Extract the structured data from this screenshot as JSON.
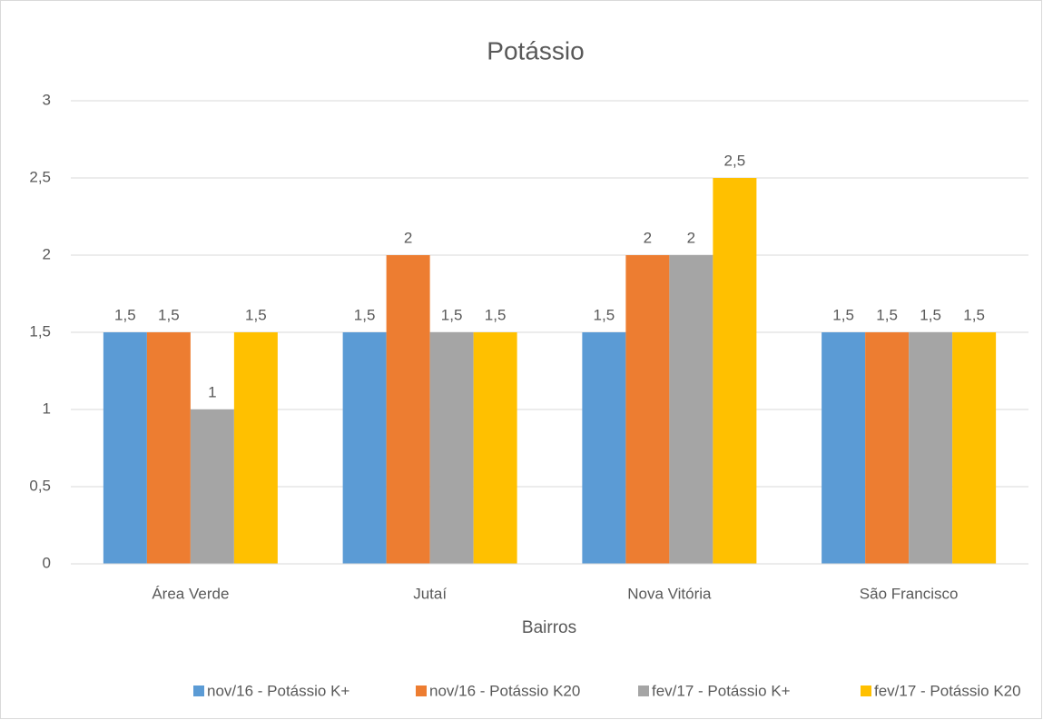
{
  "chart_data": {
    "type": "bar",
    "title": "Potássio",
    "x_label": "Bairros",
    "categories": [
      "Área Verde",
      "Jutaí",
      "Nova Vitória",
      "São Francisco"
    ],
    "series": [
      {
        "name": "nov/16 - Potássio K+",
        "color": "#5b9bd5",
        "values": [
          1.5,
          1.5,
          1.5,
          1.5
        ],
        "value_labels": [
          "1,5",
          "1,5",
          "1,5",
          "1,5"
        ]
      },
      {
        "name": "nov/16 - Potássio K20",
        "color": "#ed7d31",
        "values": [
          1.5,
          2,
          2,
          1.5
        ],
        "value_labels": [
          "1,5",
          "2",
          "2",
          "1,5"
        ]
      },
      {
        "name": "fev/17 - Potássio K+",
        "color": "#a5a5a5",
        "values": [
          1,
          1.5,
          2,
          1.5
        ],
        "value_labels": [
          "1",
          "1,5",
          "2",
          "1,5"
        ]
      },
      {
        "name": "fev/17 - Potássio K20",
        "color": "#ffc000",
        "values": [
          1.5,
          1.5,
          2.5,
          1.5
        ],
        "value_labels": [
          "1,5",
          "1,5",
          "2,5",
          "1,5"
        ]
      }
    ],
    "ylim": [
      0,
      3
    ],
    "yticks": [
      0,
      {
        "value": 0.5,
        "label": "0,5"
      },
      1,
      {
        "value": 1.5,
        "label": "1,5"
      },
      2,
      {
        "value": 2.5,
        "label": "2,5"
      },
      3
    ],
    "grid": true,
    "legend": "bottom"
  }
}
